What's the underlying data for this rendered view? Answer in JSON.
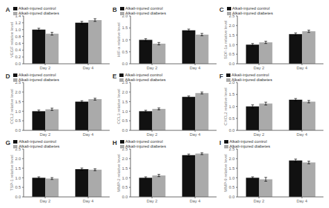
{
  "chart_data": [
    {
      "type": "bar",
      "title": "A",
      "y_label": "VEGF relative level",
      "categories": [
        "Day 2",
        "Day 4"
      ],
      "series": [
        {
          "name": "Alkali-injured control",
          "color": "#111111",
          "values": [
            1.0,
            1.2
          ],
          "errors": [
            0.04,
            0.04
          ]
        },
        {
          "name": "Alkali-injured diabetes",
          "color": "#aaaaaa",
          "values": [
            0.88,
            1.28
          ],
          "errors": [
            0.04,
            0.04
          ]
        }
      ],
      "ylim": [
        0,
        1.4
      ],
      "yticks": [
        {
          "value": 0,
          "label": "0.0"
        },
        0.2,
        0.4,
        0.6,
        0.8,
        {
          "value": 1.0,
          "label": "1.0"
        },
        1.2,
        1.4
      ],
      "legend": "upper left",
      "grid": false
    },
    {
      "type": "bar",
      "title": "B",
      "y_label": "HIF-a relative level",
      "categories": [
        "Day 2",
        "Day 4"
      ],
      "series": [
        {
          "name": "Alkali-injured control",
          "color": "#111111",
          "values": [
            1.0,
            1.4
          ],
          "errors": [
            0.05,
            0.05
          ]
        },
        {
          "name": "Alkali-injured diabetes",
          "color": "#aaaaaa",
          "values": [
            0.84,
            1.22
          ],
          "errors": [
            0.05,
            0.05
          ]
        }
      ],
      "ylim": [
        0,
        2.0
      ],
      "yticks": [
        {
          "value": 0,
          "label": "0.0"
        },
        0.5,
        {
          "value": 1.0,
          "label": "1.0"
        },
        1.5,
        {
          "value": 2.0,
          "label": "2.0"
        }
      ],
      "legend": "upper left",
      "grid": false
    },
    {
      "type": "bar",
      "title": "C",
      "y_label": "SDF-1a relative level",
      "categories": [
        "Day 2",
        "Day 4"
      ],
      "series": [
        {
          "name": "Alkali-injured control",
          "color": "#111111",
          "values": [
            1.0,
            1.55
          ],
          "errors": [
            0.06,
            0.06
          ]
        },
        {
          "name": "Alkali-injured diabetes",
          "color": "#aaaaaa",
          "values": [
            1.12,
            1.7
          ],
          "errors": [
            0.06,
            0.06
          ]
        }
      ],
      "ylim": [
        0,
        2.5
      ],
      "yticks": [
        {
          "value": 0,
          "label": "0.0"
        },
        0.5,
        {
          "value": 1.0,
          "label": "1.0"
        },
        1.5,
        {
          "value": 2.0,
          "label": "2.0"
        },
        2.5
      ],
      "legend": "upper left",
      "grid": false
    },
    {
      "type": "bar",
      "title": "D",
      "y_label": "CCL2 relative level",
      "categories": [
        "Day 2",
        "Day 4"
      ],
      "series": [
        {
          "name": "Alkali-injured control",
          "color": "#111111",
          "values": [
            1.0,
            1.5
          ],
          "errors": [
            0.06,
            0.05
          ]
        },
        {
          "name": "Alkali-injured diabetes",
          "color": "#aaaaaa",
          "values": [
            1.1,
            1.63
          ],
          "errors": [
            0.06,
            0.05
          ]
        }
      ],
      "ylim": [
        0,
        2.5
      ],
      "yticks": [
        {
          "value": 0,
          "label": "0.0"
        },
        0.5,
        {
          "value": 1.0,
          "label": "1.0"
        },
        1.5,
        {
          "value": 2.0,
          "label": "2.0"
        },
        2.5
      ],
      "legend": "upper left",
      "grid": false
    },
    {
      "type": "bar",
      "title": "E",
      "y_label": "CCL3 relative level",
      "categories": [
        "Day 2",
        "Day 4"
      ],
      "series": [
        {
          "name": "Alkali-injured control",
          "color": "#111111",
          "values": [
            1.0,
            1.75
          ],
          "errors": [
            0.05,
            0.05
          ]
        },
        {
          "name": "Alkali-injured diabetes",
          "color": "#aaaaaa",
          "values": [
            1.12,
            1.95
          ],
          "errors": [
            0.05,
            0.05
          ]
        }
      ],
      "ylim": [
        0,
        2.5
      ],
      "yticks": [
        {
          "value": 0,
          "label": "0.0"
        },
        0.5,
        {
          "value": 1.0,
          "label": "1.0"
        },
        1.5,
        {
          "value": 2.0,
          "label": "2.0"
        },
        2.5
      ],
      "legend": "upper left",
      "grid": false
    },
    {
      "type": "bar",
      "title": "F",
      "y_label": "CXCL2 relative level",
      "categories": [
        "Day 2",
        "Day 4"
      ],
      "series": [
        {
          "name": "Alkali-injured control",
          "color": "#111111",
          "values": [
            1.0,
            1.28
          ],
          "errors": [
            0.07,
            0.05
          ]
        },
        {
          "name": "Alkali-injured diabetes",
          "color": "#aaaaaa",
          "values": [
            1.12,
            1.2
          ],
          "errors": [
            0.06,
            0.05
          ]
        }
      ],
      "ylim": [
        0,
        2.0
      ],
      "yticks": [
        {
          "value": 0,
          "label": "0.0"
        },
        0.5,
        {
          "value": 1.0,
          "label": "1.0"
        },
        1.5,
        {
          "value": 2.0,
          "label": "2.0"
        }
      ],
      "legend": "upper left",
      "grid": false
    },
    {
      "type": "bar",
      "title": "G",
      "y_label": "TSP-1 relative level",
      "categories": [
        "Day 2",
        "Day 4"
      ],
      "series": [
        {
          "name": "Alkali-injured control",
          "color": "#111111",
          "values": [
            1.0,
            1.45
          ],
          "errors": [
            0.05,
            0.06
          ]
        },
        {
          "name": "Alkali-injured diabetes",
          "color": "#aaaaaa",
          "values": [
            0.96,
            1.42
          ],
          "errors": [
            0.05,
            0.05
          ]
        }
      ],
      "ylim": [
        0,
        2.5
      ],
      "yticks": [
        {
          "value": 0,
          "label": "0.0"
        },
        0.5,
        {
          "value": 1.0,
          "label": "1.0"
        },
        1.5,
        {
          "value": 2.0,
          "label": "2.0"
        },
        2.5
      ],
      "legend": "upper left",
      "grid": false
    },
    {
      "type": "bar",
      "title": "H",
      "y_label": "MMP-2 relative level",
      "categories": [
        "Day 2",
        "Day 4"
      ],
      "series": [
        {
          "name": "Alkali-injured control",
          "color": "#111111",
          "values": [
            1.0,
            2.18
          ],
          "errors": [
            0.05,
            0.06
          ]
        },
        {
          "name": "Alkali-injured diabetes",
          "color": "#aaaaaa",
          "values": [
            1.12,
            2.26
          ],
          "errors": [
            0.06,
            0.05
          ]
        }
      ],
      "ylim": [
        0,
        2.5
      ],
      "yticks": [
        {
          "value": 0,
          "label": "0.0"
        },
        0.5,
        {
          "value": 1.0,
          "label": "1.0"
        },
        1.5,
        {
          "value": 2.0,
          "label": "2.0"
        },
        2.5
      ],
      "legend": "upper left",
      "grid": false
    },
    {
      "type": "bar",
      "title": "I",
      "y_label": "MMP-9 relative level",
      "categories": [
        "Day 2",
        "Day 4"
      ],
      "series": [
        {
          "name": "Alkali-injured control",
          "color": "#111111",
          "values": [
            1.0,
            1.9
          ],
          "errors": [
            0.05,
            0.08
          ]
        },
        {
          "name": "Alkali-injured diabetes",
          "color": "#aaaaaa",
          "values": [
            0.92,
            1.8
          ],
          "errors": [
            0.1,
            0.07
          ]
        }
      ],
      "ylim": [
        0,
        2.5
      ],
      "yticks": [
        {
          "value": 0,
          "label": "0.0"
        },
        0.5,
        {
          "value": 1.0,
          "label": "1.0"
        },
        1.5,
        {
          "value": 2.0,
          "label": "2.0"
        },
        2.5
      ],
      "legend": "upper left",
      "grid": false
    }
  ]
}
